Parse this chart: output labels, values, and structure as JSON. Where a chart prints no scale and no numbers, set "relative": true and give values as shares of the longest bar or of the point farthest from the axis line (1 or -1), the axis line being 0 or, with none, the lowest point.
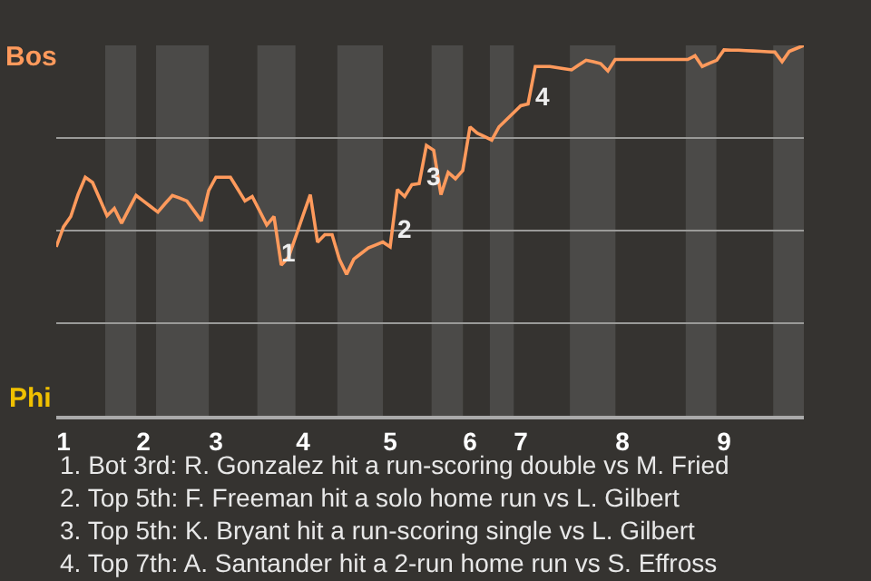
{
  "chart_data": {
    "type": "line",
    "relative": true,
    "categories": [
      null,
      "1",
      null,
      null,
      null,
      null,
      null,
      null,
      null,
      null,
      null,
      null,
      "2",
      null,
      null,
      null,
      null,
      null,
      null,
      null,
      null,
      null,
      "3",
      null,
      null,
      null,
      null,
      null,
      null,
      null,
      null,
      null,
      null,
      null,
      "4",
      null,
      null,
      null,
      null,
      null,
      null,
      null,
      null,
      null,
      null,
      null,
      "5",
      null,
      null,
      null,
      null,
      null,
      null,
      null,
      null,
      null,
      null,
      "6",
      null,
      null,
      null,
      null,
      null,
      null,
      "7",
      null,
      null,
      null,
      null,
      null,
      null,
      null,
      null,
      null,
      null,
      null,
      null,
      null,
      "8",
      null,
      null,
      null,
      null,
      null,
      null,
      null,
      null,
      null,
      null,
      null,
      null,
      null,
      "9",
      null,
      null,
      null,
      null,
      null,
      null,
      null,
      null,
      null,
      null,
      null
    ],
    "series": [
      {
        "color": "#ff9a5c",
        "values": [
          0.456,
          0.51,
          0.538,
          0.597,
          0.644,
          0.63,
          0.585,
          0.54,
          0.56,
          0.52,
          0.558,
          0.595,
          0.58,
          0.565,
          0.55,
          0.573,
          0.595,
          0.588,
          0.58,
          0.553,
          0.526,
          0.608,
          0.644,
          0.644,
          0.644,
          0.612,
          0.58,
          0.592,
          0.554,
          0.515,
          0.538,
          0.407,
          0.428,
          0.484,
          0.541,
          0.597,
          0.469,
          0.489,
          0.489,
          0.423,
          0.382,
          0.423,
          0.438,
          0.453,
          0.461,
          0.469,
          0.456,
          0.611,
          0.592,
          0.624,
          0.627,
          0.73,
          0.717,
          0.597,
          0.657,
          0.64,
          0.662,
          0.78,
          0.763,
          0.754,
          0.744,
          0.78,
          0.799,
          0.818,
          0.837,
          0.842,
          0.943,
          0.943,
          0.943,
          0.94,
          0.937,
          0.934,
          0.947,
          0.96,
          0.956,
          0.951,
          0.931,
          0.962,
          0.962,
          0.962,
          0.962,
          0.962,
          0.962,
          0.962,
          0.962,
          0.962,
          0.962,
          0.962,
          0.972,
          0.943,
          0.952,
          0.96,
          0.988,
          0.987,
          0.987,
          0.986,
          0.985,
          0.984,
          0.983,
          0.982,
          0.956,
          0.984,
          0.992,
          1
        ]
      }
    ],
    "grid": "y",
    "marker": "none",
    "line_style": "solid",
    "annotations": [
      "Bos",
      "Phi",
      "1",
      "2",
      "3",
      "4",
      "1. Bot 3rd: R. Gonzalez hit a run-scoring double vs M. Fried",
      "2. Top 5th: F. Freeman hit a solo home run vs L. Gilbert",
      "3. Top 5th: K. Bryant hit a run-scoring single vs L. Gilbert",
      "4. Top 7th: A. Santander hit a 2-run home run vs S. Effross"
    ]
  }
}
